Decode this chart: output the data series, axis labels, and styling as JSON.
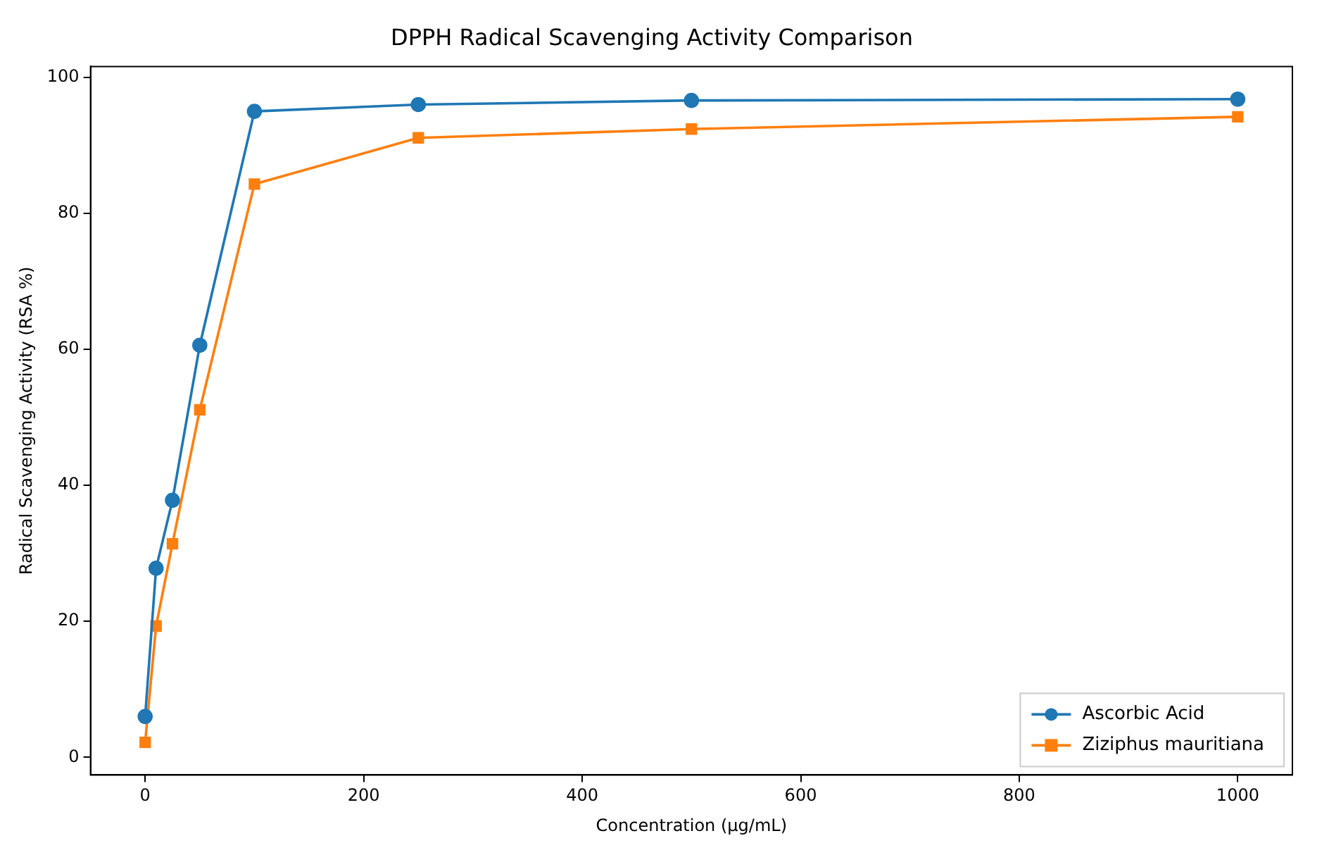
{
  "chart_data": {
    "type": "line",
    "title": "DPPH Radical Scavenging Activity Comparison",
    "xlabel": "Concentration (µg/mL)",
    "ylabel": "Radical Scavenging Activity (RSA %)",
    "x": [
      0,
      10,
      25,
      50,
      100,
      250,
      500,
      1000
    ],
    "series": [
      {
        "name": "Ascorbic Acid",
        "color": "#1f77b4",
        "marker": "circle",
        "values": [
          6.0,
          27.8,
          37.8,
          60.6,
          95.0,
          96.0,
          96.6,
          96.8
        ]
      },
      {
        "name": "Ziziphus mauritiana",
        "color": "#ff7f0e",
        "marker": "square",
        "values": [
          2.2,
          19.3,
          31.4,
          51.1,
          84.3,
          91.1,
          92.4,
          94.2
        ]
      }
    ],
    "xlim": [
      -50,
      1050
    ],
    "xticks": [
      0,
      200,
      400,
      600,
      800,
      1000
    ],
    "ylim": [
      -2.6,
      101.6
    ],
    "yticks": [
      0,
      20,
      40,
      60,
      80,
      100
    ],
    "grid": false,
    "legend": "bottom right",
    "line_style": "solid"
  }
}
